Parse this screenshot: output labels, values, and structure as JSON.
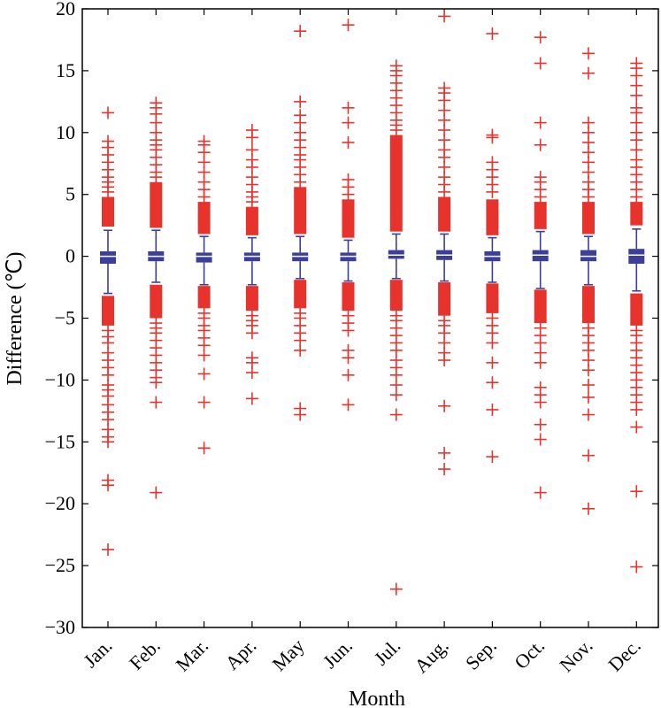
{
  "chart_data": {
    "type": "box",
    "xlabel": "Month",
    "ylabel": "Difference (℃)",
    "ylim": [
      -30,
      20
    ],
    "yticks": [
      20,
      15,
      10,
      5,
      0,
      -5,
      -10,
      -15,
      -20,
      -25,
      -30
    ],
    "grid": false,
    "colors": {
      "box": "#3b3f9a",
      "outlier": "#e8322c"
    },
    "categories": [
      "Jan.",
      "Feb.",
      "Mar.",
      "Apr.",
      "May",
      "Jun.",
      "Jul.",
      "Aug.",
      "Sep.",
      "Oct.",
      "Nov.",
      "Dec."
    ],
    "boxes": [
      {
        "q1": -0.6,
        "median": 0.0,
        "q3": 0.4,
        "whisker_low": -3.0,
        "whisker_high": 2.1,
        "outliers_dense": [
          [
            2.4,
            4.8
          ],
          [
            -5.6,
            -3.2
          ]
        ],
        "outliers": [
          5.2,
          5.6,
          6.0,
          6.4,
          7.0,
          7.6,
          8.2,
          8.8,
          9.3,
          11.6,
          -6.0,
          -6.5,
          -7.0,
          -7.8,
          -8.4,
          -9.0,
          -9.6,
          -10.4,
          -10.8,
          -11.3,
          -12.0,
          -12.6,
          -13.2,
          -14.0,
          -14.6,
          -15.0,
          -18.1,
          -18.5,
          -23.7
        ]
      },
      {
        "q1": -0.4,
        "median": 0.0,
        "q3": 0.4,
        "whisker_low": -2.1,
        "whisker_high": 2.1,
        "outliers_dense": [
          [
            2.3,
            6.0
          ],
          [
            -5.0,
            -2.3
          ]
        ],
        "outliers": [
          6.4,
          6.8,
          7.4,
          8.0,
          8.6,
          9.0,
          9.4,
          10.0,
          10.8,
          11.5,
          12.0,
          12.4,
          -5.4,
          -5.8,
          -6.2,
          -6.8,
          -7.4,
          -8.0,
          -8.6,
          -9.2,
          -9.8,
          -10.2,
          -11.8,
          -19.1
        ]
      },
      {
        "q1": -0.5,
        "median": 0.0,
        "q3": 0.3,
        "whisker_low": -2.3,
        "whisker_high": 1.6,
        "outliers_dense": [
          [
            1.8,
            4.4
          ],
          [
            -4.2,
            -2.4
          ]
        ],
        "outliers": [
          4.8,
          5.4,
          6.0,
          6.8,
          7.6,
          8.4,
          9.0,
          9.3,
          -4.6,
          -5.0,
          -5.6,
          -6.0,
          -6.6,
          -7.2,
          -8.0,
          -9.5,
          -11.8,
          -15.5
        ]
      },
      {
        "q1": -0.4,
        "median": 0.0,
        "q3": 0.3,
        "whisker_low": -2.3,
        "whisker_high": 1.5,
        "outliers_dense": [
          [
            1.7,
            4.0
          ],
          [
            -4.4,
            -2.4
          ]
        ],
        "outliers": [
          4.4,
          4.8,
          5.2,
          5.8,
          6.4,
          7.2,
          7.8,
          8.6,
          9.6,
          10.2,
          -4.8,
          -5.2,
          -5.6,
          -6.2,
          -8.2,
          -8.6,
          -9.4,
          -11.5
        ]
      },
      {
        "q1": -0.4,
        "median": 0.0,
        "q3": 0.3,
        "whisker_low": -1.8,
        "whisker_high": 1.6,
        "outliers_dense": [
          [
            1.8,
            5.6
          ],
          [
            -4.2,
            -1.9
          ]
        ],
        "outliers": [
          6.0,
          6.6,
          7.2,
          7.8,
          8.2,
          8.8,
          9.4,
          10.0,
          10.8,
          11.4,
          12.5,
          18.2,
          -4.6,
          -5.0,
          -5.6,
          -6.2,
          -6.8,
          -7.6,
          -12.3,
          -12.8
        ]
      },
      {
        "q1": -0.4,
        "median": 0.0,
        "q3": 0.3,
        "whisker_low": -2.0,
        "whisker_high": 1.3,
        "outliers_dense": [
          [
            1.5,
            4.6
          ],
          [
            -4.4,
            -2.1
          ]
        ],
        "outliers": [
          5.0,
          5.6,
          6.2,
          9.2,
          10.8,
          12.0,
          18.7,
          -4.8,
          -5.4,
          -6.0,
          -7.6,
          -8.2,
          -9.6,
          -12.0
        ]
      },
      {
        "q1": -0.2,
        "median": 0.1,
        "q3": 0.5,
        "whisker_low": -1.8,
        "whisker_high": 1.8,
        "outliers_dense": [
          [
            2.0,
            9.8
          ],
          [
            -4.4,
            -1.9
          ]
        ],
        "outliers": [
          10.2,
          10.6,
          11.0,
          11.6,
          12.2,
          12.8,
          13.4,
          14.0,
          14.6,
          15.0,
          15.4,
          -4.8,
          -5.2,
          -5.8,
          -6.4,
          -7.0,
          -7.6,
          -8.4,
          -9.0,
          -9.6,
          -10.4,
          -11.2,
          -12.8,
          -26.9
        ]
      },
      {
        "q1": -0.3,
        "median": 0.1,
        "q3": 0.5,
        "whisker_low": -2.0,
        "whisker_high": 1.8,
        "outliers_dense": [
          [
            2.0,
            4.8
          ],
          [
            -4.8,
            -2.1
          ]
        ],
        "outliers": [
          5.2,
          5.8,
          6.4,
          7.2,
          8.0,
          8.6,
          9.4,
          10.2,
          11.0,
          11.8,
          12.6,
          13.2,
          13.6,
          19.4,
          -5.2,
          -5.6,
          -6.2,
          -7.0,
          -7.8,
          -8.4,
          -12.1,
          -15.9,
          -17.2
        ]
      },
      {
        "q1": -0.4,
        "median": 0.0,
        "q3": 0.4,
        "whisker_low": -2.1,
        "whisker_high": 1.5,
        "outliers_dense": [
          [
            1.7,
            4.6
          ],
          [
            -4.6,
            -2.2
          ]
        ],
        "outliers": [
          5.2,
          5.8,
          6.4,
          7.0,
          7.6,
          9.6,
          9.8,
          18.0,
          -5.0,
          -5.6,
          -6.2,
          -7.0,
          -8.6,
          -10.2,
          -12.4,
          -16.2
        ]
      },
      {
        "q1": -0.4,
        "median": 0.1,
        "q3": 0.5,
        "whisker_low": -2.6,
        "whisker_high": 2.0,
        "outliers_dense": [
          [
            2.2,
            4.4
          ],
          [
            -5.4,
            -2.7
          ]
        ],
        "outliers": [
          4.8,
          5.4,
          6.0,
          6.4,
          9.0,
          10.8,
          15.6,
          17.7,
          -5.8,
          -6.4,
          -7.0,
          -7.8,
          -8.6,
          -10.6,
          -11.2,
          -11.8,
          -13.6,
          -14.8,
          -19.1
        ]
      },
      {
        "q1": -0.4,
        "median": 0.0,
        "q3": 0.5,
        "whisker_low": -2.3,
        "whisker_high": 1.6,
        "outliers_dense": [
          [
            1.8,
            4.4
          ],
          [
            -5.4,
            -2.4
          ]
        ],
        "outliers": [
          4.8,
          5.4,
          6.0,
          6.8,
          7.6,
          8.4,
          9.2,
          10.0,
          10.8,
          14.8,
          16.4,
          -5.8,
          -6.4,
          -7.0,
          -7.6,
          -8.4,
          -9.2,
          -10.4,
          -11.4,
          -12.8,
          -16.1,
          -20.4
        ]
      },
      {
        "q1": -0.6,
        "median": 0.1,
        "q3": 0.6,
        "whisker_low": -2.8,
        "whisker_high": 2.2,
        "outliers_dense": [
          [
            2.5,
            4.4
          ],
          [
            -5.6,
            -3.0
          ]
        ],
        "outliers": [
          4.8,
          5.4,
          6.0,
          6.6,
          7.2,
          7.8,
          8.6,
          9.4,
          10.0,
          10.8,
          11.6,
          12.0,
          13.0,
          13.8,
          14.6,
          15.2,
          15.6,
          -6.0,
          -6.4,
          -7.0,
          -7.6,
          -8.2,
          -8.8,
          -9.4,
          -10.0,
          -10.6,
          -11.2,
          -11.8,
          -12.4,
          -13.8,
          -19.0,
          -25.1
        ]
      }
    ]
  }
}
